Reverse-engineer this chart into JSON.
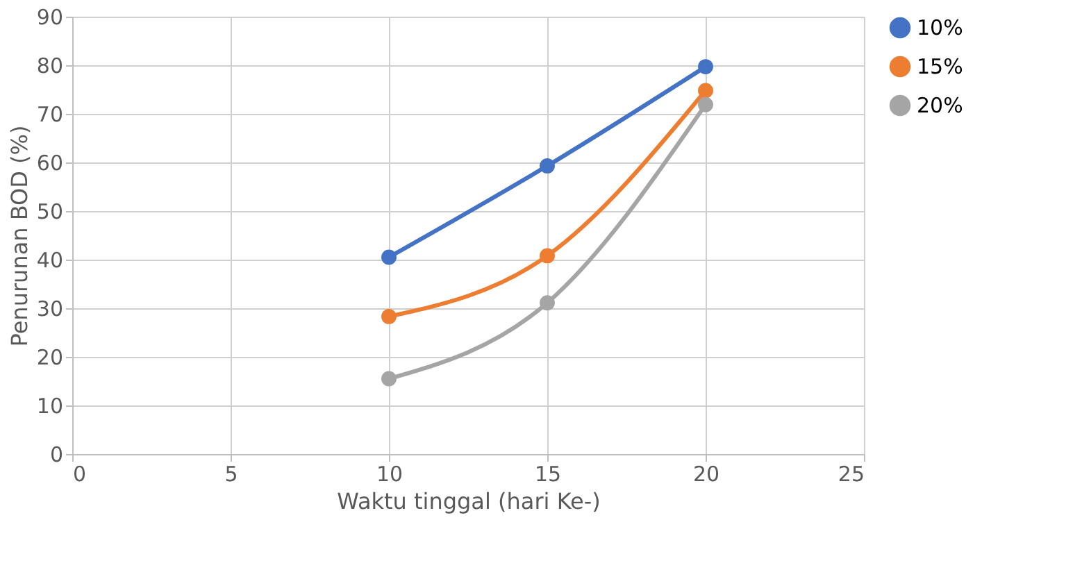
{
  "chart_data": {
    "type": "line",
    "xlabel": "Waktu tinggal (hari Ke-)",
    "ylabel": "Penurunan BOD (%)",
    "x": [
      10,
      15,
      20
    ],
    "series": [
      {
        "name": "10%",
        "color": "#4472c4",
        "values": [
          40.5,
          59.3,
          79.7
        ]
      },
      {
        "name": "15%",
        "color": "#ed7d31",
        "values": [
          28.3,
          40.8,
          74.8
        ]
      },
      {
        "name": "20%",
        "color": "#a5a5a5",
        "values": [
          15.5,
          31.1,
          71.9
        ]
      }
    ],
    "xlim": [
      0,
      25
    ],
    "xticks": [
      0,
      5,
      10,
      15,
      20,
      25
    ],
    "ylim": [
      0,
      90
    ],
    "yticks": [
      0,
      10,
      20,
      30,
      40,
      50,
      60,
      70,
      80,
      90
    ],
    "grid": true,
    "legend": "right",
    "marker": "circle",
    "line_style": "solid"
  }
}
